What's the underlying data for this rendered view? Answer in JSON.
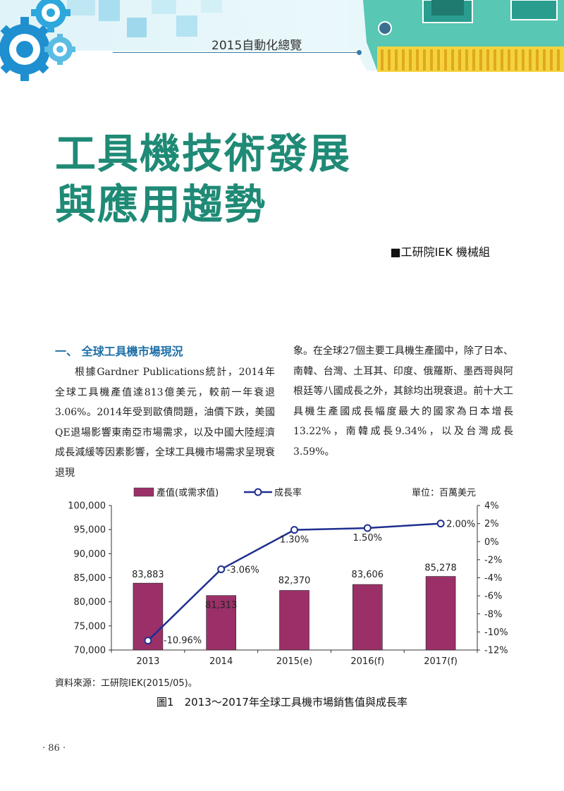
{
  "header": {
    "title": "2015自動化總覽"
  },
  "article": {
    "title_line1": "工具機技術發展",
    "title_line2": "與應用趨勢",
    "author": "■工研院IEK 機械組"
  },
  "section": {
    "heading": "一、 全球工具機市場現況",
    "paragraph1": "根據Gardner Publications統計，2014年全球工具機產值達813億美元，較前一年衰退3.06%。2014年受到歐債問題，油價下跌，美國QE退場影響東南亞市場需求，以及中國大陸經濟成長減緩等因素影響，全球工具機市場需求呈現衰退現",
    "paragraph1_cont": "象。在全球27個主要工具機生產國中，除了日本、南韓、台灣、土耳其、印度、俄羅斯、墨西哥與阿根廷等八國成長之外，其餘均出現衰退。前十大工具機生產國成長幅度最大的國家為日本增長13.22%，南韓成長9.34%，以及台灣成長3.59%。"
  },
  "chart_data": {
    "type": "bar",
    "categories": [
      "2013",
      "2014",
      "2015(e)",
      "2016(f)",
      "2017(f)"
    ],
    "series": [
      {
        "name": "產值(或需求值)",
        "type": "bar",
        "axis": "left",
        "values": [
          83883,
          81313,
          82370,
          83606,
          85278
        ],
        "labels": [
          "83,883",
          "81,313",
          "82,370",
          "83,606",
          "85,278"
        ],
        "color": "#9b3068"
      },
      {
        "name": "成長率",
        "type": "line",
        "axis": "right",
        "values": [
          -10.96,
          -3.06,
          1.3,
          1.5,
          2.0
        ],
        "labels": [
          "-10.96%",
          "-3.06%",
          "1.30%",
          "1.50%",
          "2.00%"
        ],
        "color": "#1f2f8f"
      }
    ],
    "unit_label": "單位：百萬美元",
    "ylim": [
      70000,
      100000
    ],
    "y_ticks": [
      "100,000",
      "95,000",
      "90,000",
      "85,000",
      "80,000",
      "75,000",
      "70,000"
    ],
    "y2lim": [
      -12,
      4
    ],
    "y2_ticks": [
      "4%",
      "2%",
      "0%",
      "-2%",
      "-4%",
      "-6%",
      "-8%",
      "-10%",
      "-12%"
    ],
    "legend_position": "top",
    "grid": false
  },
  "figure": {
    "source": "資料來源：工研院IEK(2015/05)。",
    "caption": "圖1　2013～2017年全球工具機市場銷售值與成長率"
  },
  "page": {
    "number": "‧ 86 ‧"
  }
}
